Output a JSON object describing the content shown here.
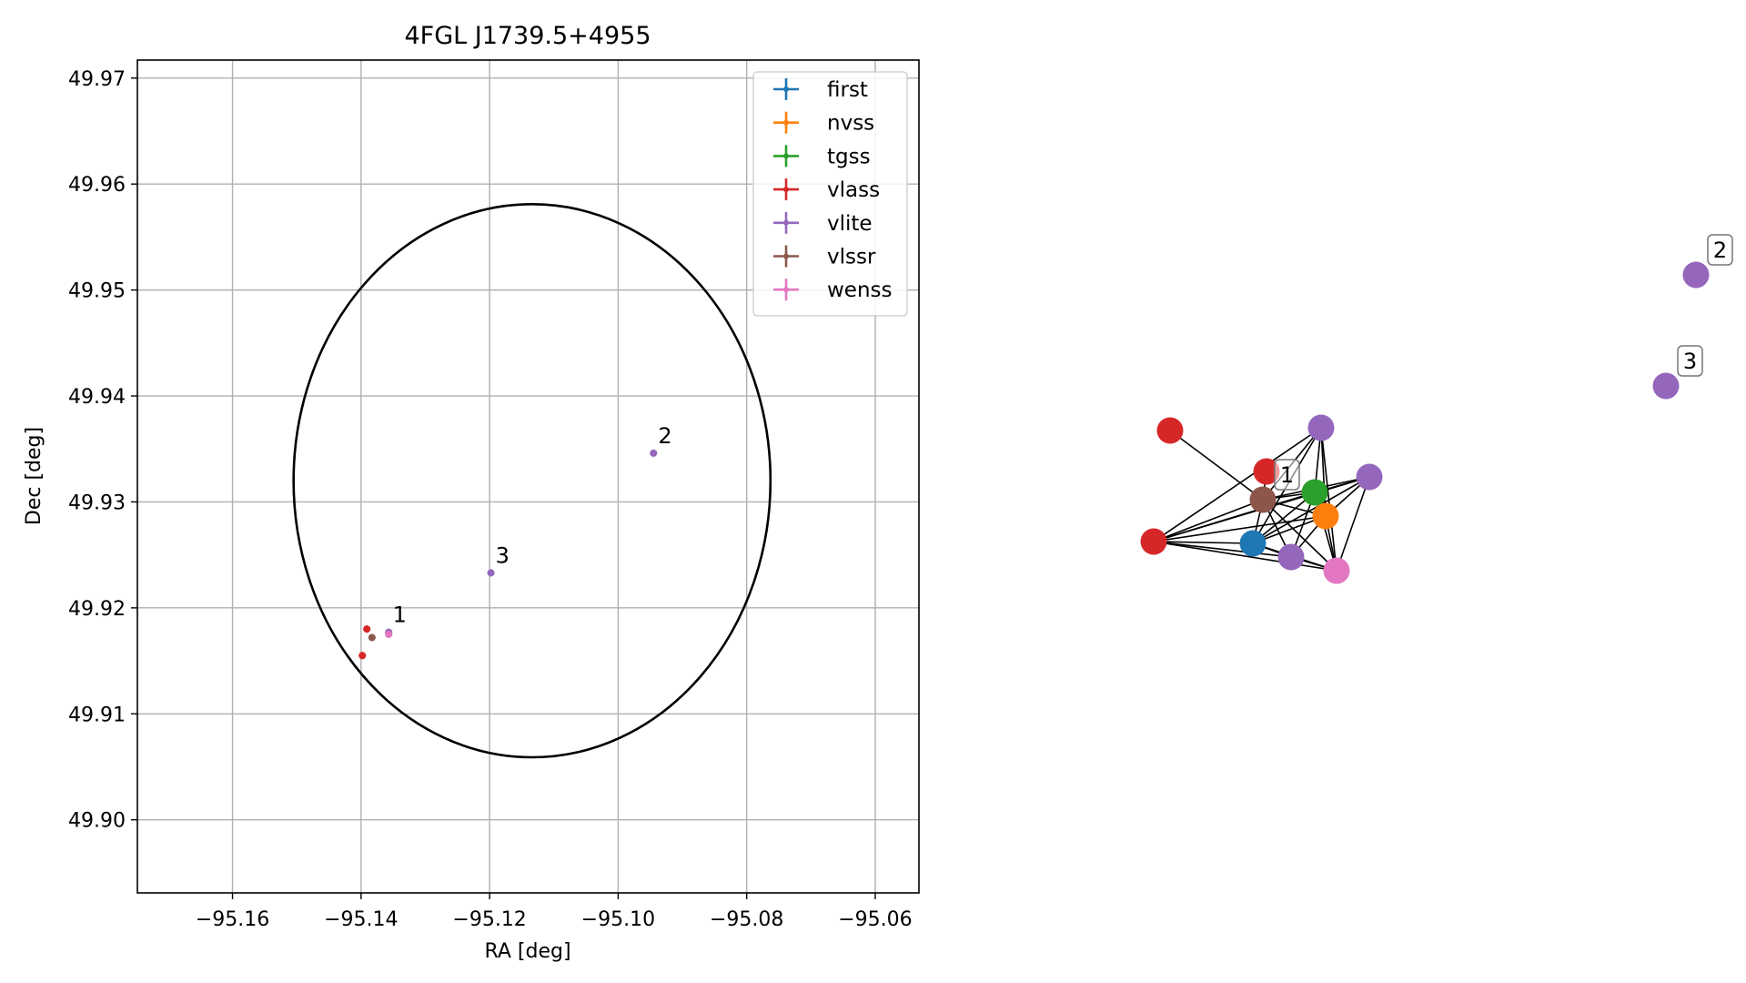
{
  "chart_data": [
    {
      "type": "scatter",
      "title": "4FGL J1739.5+4955",
      "xlabel": "RA [deg]",
      "ylabel": "Dec [deg]",
      "xlim": [
        -95.1748,
        -95.0532
      ],
      "ylim": [
        49.8931,
        49.9717
      ],
      "xticks": [
        -95.16,
        -95.14,
        -95.12,
        -95.1,
        -95.08,
        -95.06
      ],
      "xtick_labels": [
        "−95.16",
        "−95.14",
        "−95.12",
        "−95.10",
        "−95.08",
        "−95.06"
      ],
      "yticks": [
        49.9,
        49.91,
        49.92,
        49.93,
        49.94,
        49.95,
        49.96,
        49.97
      ],
      "ytick_labels": [
        "49.90",
        "49.91",
        "49.92",
        "49.93",
        "49.94",
        "49.95",
        "49.96",
        "49.97"
      ],
      "grid": true,
      "legend_position": "top-right",
      "ellipse": {
        "center_ra": -95.1134,
        "center_dec": 49.932,
        "semi_ra": 0.0371,
        "semi_dec": 0.0261,
        "color": "#000000"
      },
      "series": [
        {
          "name": "first",
          "color": "#1f77b4",
          "points": []
        },
        {
          "name": "nvss",
          "color": "#ff7f0e",
          "points": []
        },
        {
          "name": "tgss",
          "color": "#2ca02c",
          "points": []
        },
        {
          "name": "vlass",
          "color": "#d62728",
          "points": [
            {
              "ra": -95.1391,
              "dec": 49.918
            },
            {
              "ra": -95.1398,
              "dec": 49.9155
            }
          ]
        },
        {
          "name": "vlite",
          "color": "#9467bd",
          "points": [
            {
              "ra": -95.0945,
              "dec": 49.9346
            },
            {
              "ra": -95.1198,
              "dec": 49.9233
            },
            {
              "ra": -95.1357,
              "dec": 49.9177
            }
          ]
        },
        {
          "name": "vlssr",
          "color": "#8c564b",
          "points": [
            {
              "ra": -95.1383,
              "dec": 49.9172
            }
          ]
        },
        {
          "name": "wenss",
          "color": "#e377c2",
          "points": [
            {
              "ra": -95.1357,
              "dec": 49.9175
            }
          ]
        }
      ],
      "annotations": [
        {
          "text": "1",
          "ra": -95.1355,
          "dec": 49.9183
        },
        {
          "text": "2",
          "ra": -95.0942,
          "dec": 49.9352
        },
        {
          "text": "3",
          "ra": -95.1195,
          "dec": 49.9239
        }
      ]
    },
    {
      "type": "network",
      "nodes": [
        {
          "id": "first",
          "color": "#1f77b4"
        },
        {
          "id": "nvss",
          "color": "#ff7f0e"
        },
        {
          "id": "tgss",
          "color": "#2ca02c"
        },
        {
          "id": "vlass-a",
          "color": "#d62728"
        },
        {
          "id": "vlass-b",
          "color": "#d62728"
        },
        {
          "id": "vlass-c",
          "color": "#d62728"
        },
        {
          "id": "vlite-a",
          "color": "#9467bd"
        },
        {
          "id": "vlite-b",
          "color": "#9467bd"
        },
        {
          "id": "vlite-c",
          "color": "#9467bd"
        },
        {
          "id": "vlssr",
          "color": "#8c564b",
          "label": "1"
        },
        {
          "id": "wenss",
          "color": "#e377c2"
        },
        {
          "id": "vlite-2",
          "color": "#9467bd",
          "label": "2"
        },
        {
          "id": "vlite-3",
          "color": "#9467bd",
          "label": "3"
        }
      ],
      "edges": [
        [
          "vlass-a",
          "vlssr"
        ],
        [
          "vlass-b",
          "vlssr"
        ],
        [
          "vlssr",
          "vlass-c"
        ],
        [
          "vlssr",
          "tgss"
        ],
        [
          "vlssr",
          "nvss"
        ],
        [
          "vlssr",
          "first"
        ],
        [
          "vlssr",
          "vlite-b"
        ],
        [
          "vlssr",
          "wenss"
        ],
        [
          "vlssr",
          "vlite-a"
        ],
        [
          "vlssr",
          "vlite-c"
        ],
        [
          "vlass-c",
          "tgss"
        ],
        [
          "vlass-c",
          "nvss"
        ],
        [
          "vlass-c",
          "first"
        ],
        [
          "vlass-c",
          "vlite-b"
        ],
        [
          "vlass-c",
          "wenss"
        ],
        [
          "vlass-c",
          "vlite-a"
        ],
        [
          "vlass-c",
          "vlite-c"
        ],
        [
          "tgss",
          "nvss"
        ],
        [
          "tgss",
          "first"
        ],
        [
          "tgss",
          "vlite-b"
        ],
        [
          "tgss",
          "wenss"
        ],
        [
          "tgss",
          "vlite-a"
        ],
        [
          "tgss",
          "vlite-c"
        ],
        [
          "nvss",
          "first"
        ],
        [
          "nvss",
          "vlite-b"
        ],
        [
          "nvss",
          "wenss"
        ],
        [
          "nvss",
          "vlite-a"
        ],
        [
          "nvss",
          "vlite-c"
        ],
        [
          "first",
          "vlite-b"
        ],
        [
          "first",
          "wenss"
        ],
        [
          "first",
          "vlite-a"
        ],
        [
          "first",
          "vlite-c"
        ],
        [
          "vlite-b",
          "wenss"
        ],
        [
          "vlite-a",
          "wenss"
        ],
        [
          "vlite-c",
          "wenss"
        ]
      ]
    }
  ]
}
